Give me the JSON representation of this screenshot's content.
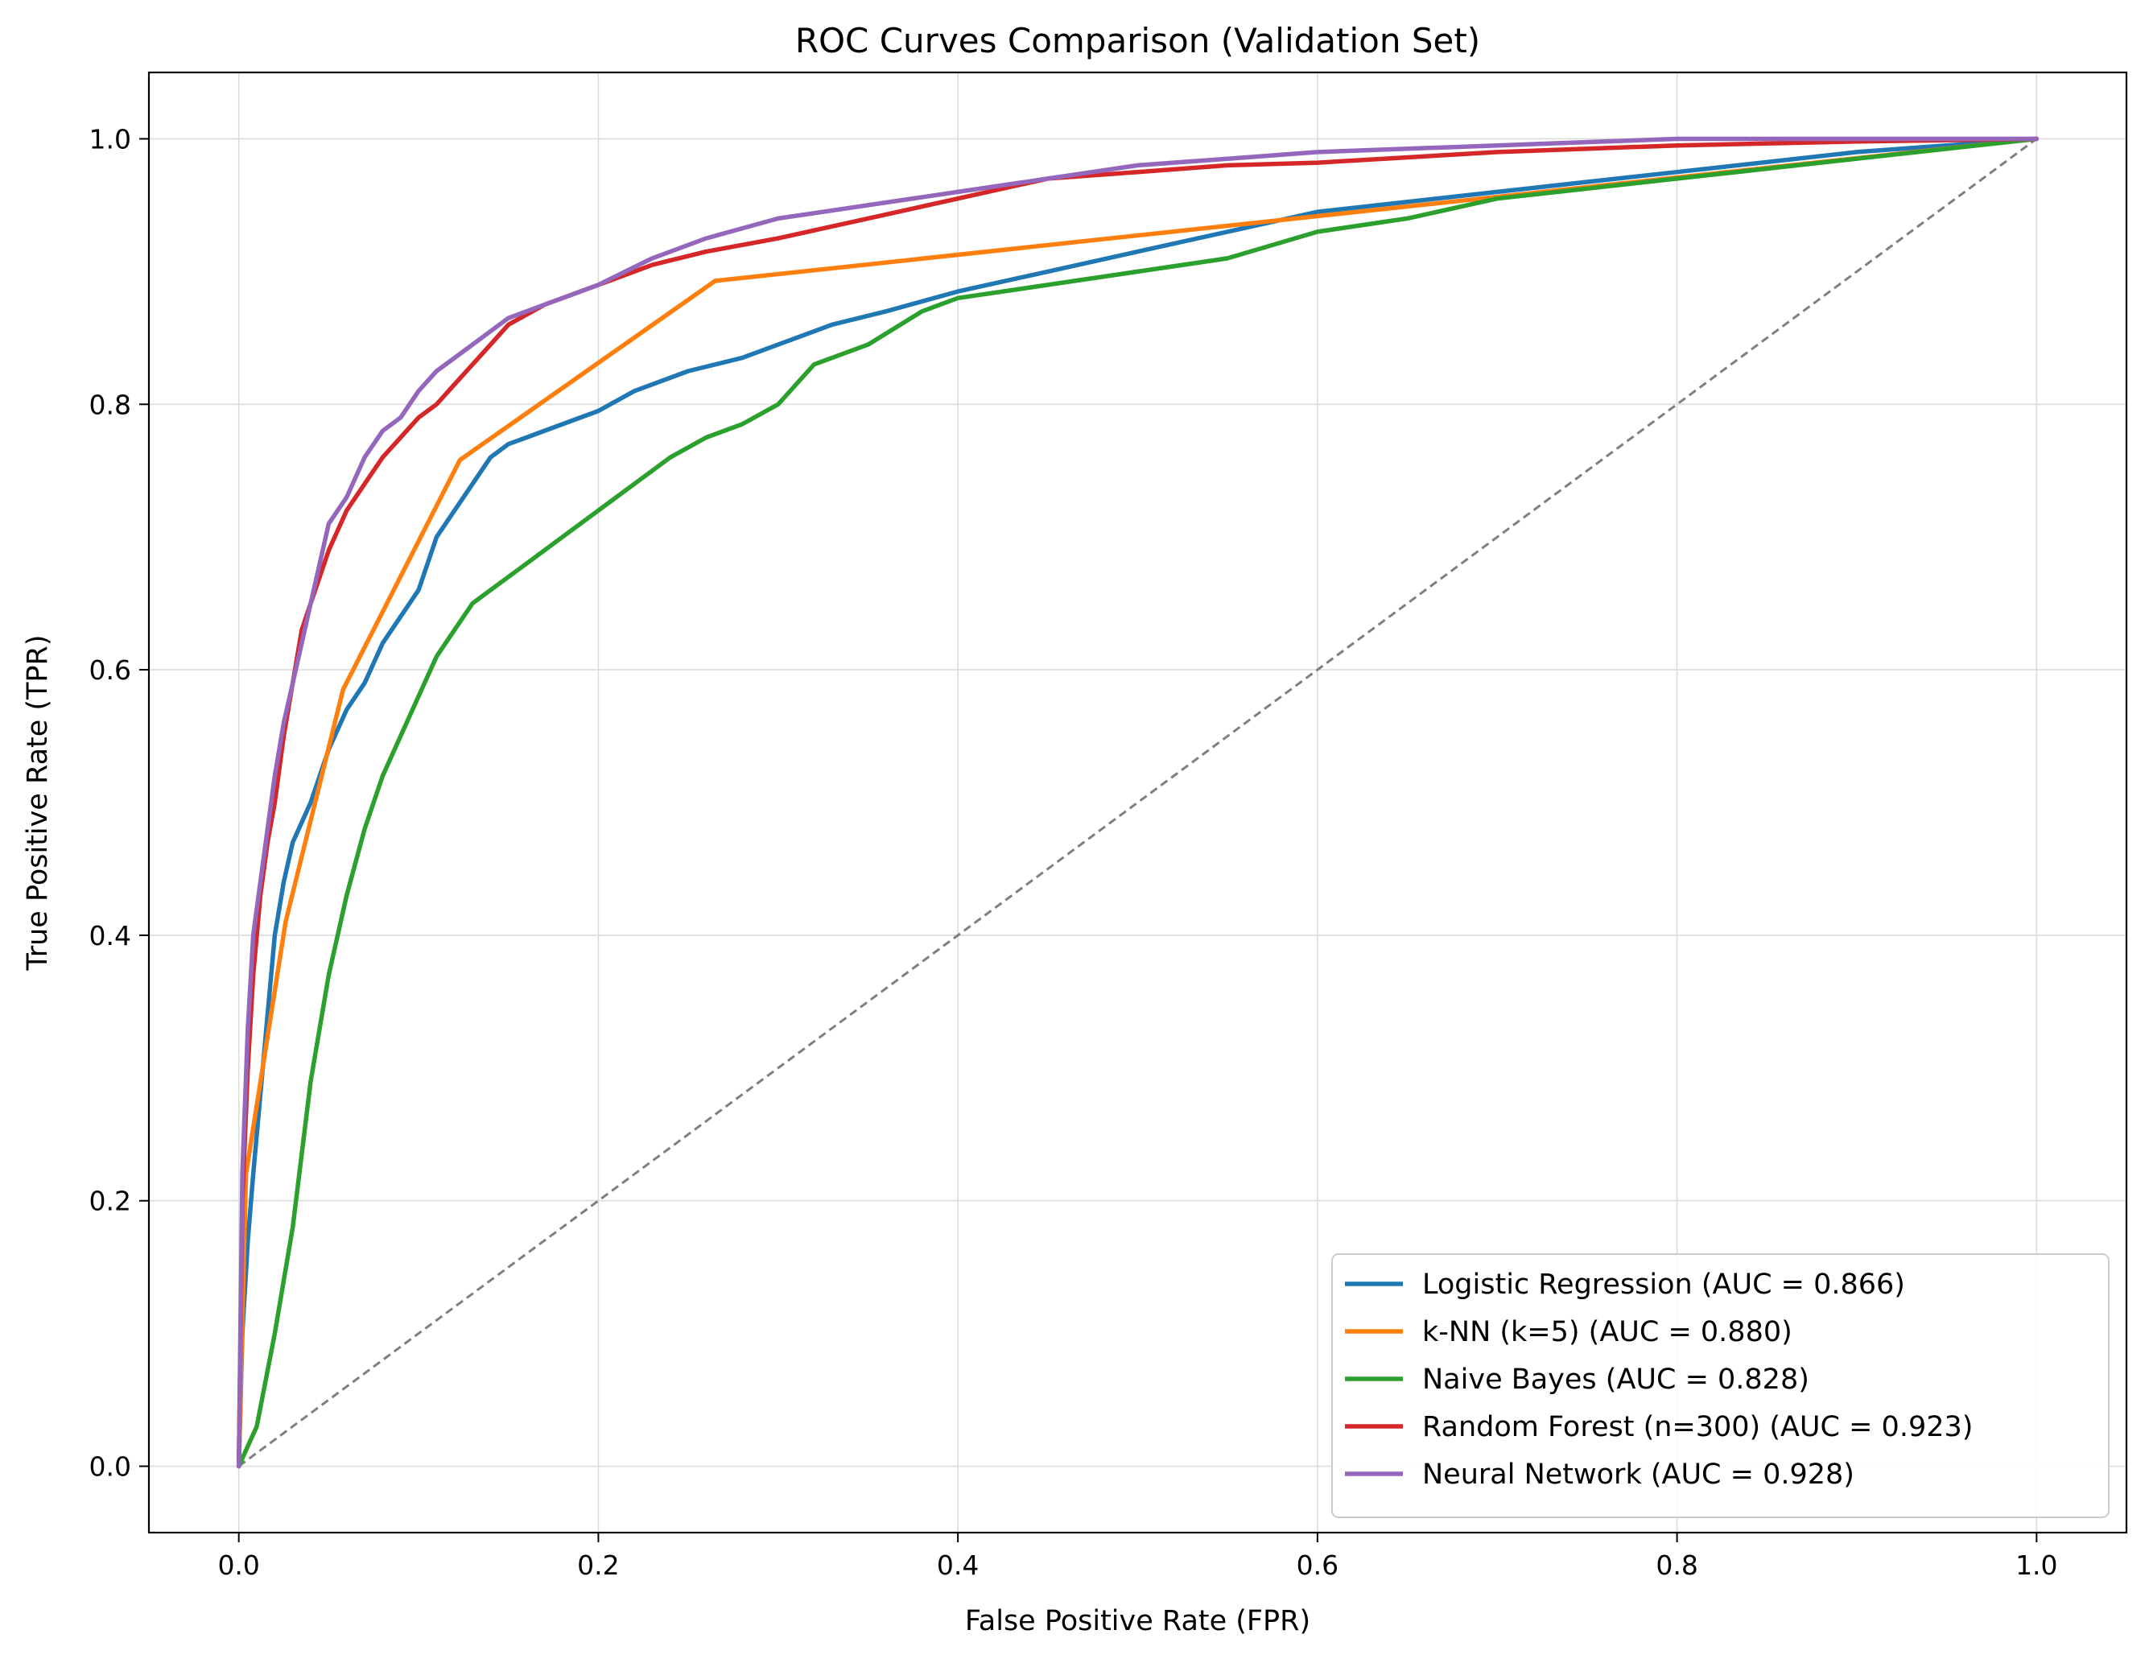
{
  "chart_data": {
    "type": "line",
    "title": "ROC Curves Comparison (Validation Set)",
    "xlabel": "False Positive Rate (FPR)",
    "ylabel": "True Positive Rate (TPR)",
    "xlim": [
      -0.05,
      1.05
    ],
    "ylim": [
      -0.05,
      1.05
    ],
    "xticks": [
      0.0,
      0.2,
      0.4,
      0.6,
      0.8,
      1.0
    ],
    "yticks": [
      0.0,
      0.2,
      0.4,
      0.6,
      0.8,
      1.0
    ],
    "xtick_labels": [
      "0.0",
      "0.2",
      "0.4",
      "0.6",
      "0.8",
      "1.0"
    ],
    "ytick_labels": [
      "0.0",
      "0.2",
      "0.4",
      "0.6",
      "0.8",
      "1.0"
    ],
    "grid": true,
    "legend_position": "lower-right",
    "series": [
      {
        "name": "Logistic Regression (AUC = 0.866)",
        "color": "#1f77b4",
        "x": [
          0,
          0.002,
          0.005,
          0.008,
          0.012,
          0.016,
          0.02,
          0.025,
          0.03,
          0.04,
          0.05,
          0.06,
          0.07,
          0.08,
          0.09,
          0.1,
          0.11,
          0.12,
          0.13,
          0.14,
          0.15,
          0.16,
          0.18,
          0.2,
          0.22,
          0.25,
          0.28,
          0.3,
          0.33,
          0.36,
          0.4,
          0.45,
          0.5,
          0.55,
          0.6,
          0.7,
          0.8,
          0.9,
          1.0
        ],
        "y": [
          0,
          0.1,
          0.17,
          0.22,
          0.28,
          0.34,
          0.4,
          0.44,
          0.47,
          0.5,
          0.54,
          0.57,
          0.59,
          0.62,
          0.64,
          0.66,
          0.7,
          0.72,
          0.74,
          0.76,
          0.77,
          0.775,
          0.785,
          0.795,
          0.81,
          0.825,
          0.835,
          0.845,
          0.86,
          0.87,
          0.885,
          0.9,
          0.915,
          0.93,
          0.945,
          0.96,
          0.975,
          0.99,
          1.0
        ]
      },
      {
        "name": "k-NN (k=5) (AUC = 0.880)",
        "color": "#ff7f0e",
        "x": [
          0,
          0.004,
          0.026,
          0.058,
          0.123,
          0.265,
          1.0
        ],
        "y": [
          0,
          0.22,
          0.41,
          0.585,
          0.758,
          0.893,
          1.0
        ]
      },
      {
        "name": "Naive Bayes (AUC = 0.828)",
        "color": "#2ca02c",
        "x": [
          0,
          0.01,
          0.02,
          0.03,
          0.04,
          0.05,
          0.06,
          0.07,
          0.08,
          0.09,
          0.1,
          0.11,
          0.12,
          0.13,
          0.14,
          0.15,
          0.16,
          0.18,
          0.2,
          0.22,
          0.24,
          0.26,
          0.28,
          0.3,
          0.32,
          0.35,
          0.38,
          0.4,
          0.45,
          0.5,
          0.55,
          0.6,
          0.65,
          0.7,
          0.8,
          0.9,
          1.0
        ],
        "y": [
          0,
          0.03,
          0.1,
          0.18,
          0.29,
          0.37,
          0.43,
          0.48,
          0.52,
          0.55,
          0.58,
          0.61,
          0.63,
          0.65,
          0.66,
          0.67,
          0.68,
          0.7,
          0.72,
          0.74,
          0.76,
          0.775,
          0.785,
          0.8,
          0.83,
          0.845,
          0.87,
          0.88,
          0.89,
          0.9,
          0.91,
          0.93,
          0.94,
          0.955,
          0.97,
          0.985,
          1.0
        ]
      },
      {
        "name": "Random Forest (n=300) (AUC = 0.923)",
        "color": "#d62728",
        "x": [
          0,
          0.002,
          0.005,
          0.008,
          0.012,
          0.016,
          0.02,
          0.025,
          0.03,
          0.035,
          0.04,
          0.045,
          0.05,
          0.06,
          0.07,
          0.08,
          0.09,
          0.1,
          0.11,
          0.12,
          0.13,
          0.14,
          0.15,
          0.17,
          0.2,
          0.23,
          0.26,
          0.3,
          0.35,
          0.4,
          0.45,
          0.5,
          0.55,
          0.6,
          0.7,
          0.8,
          0.9,
          1.0
        ],
        "y": [
          0,
          0.2,
          0.3,
          0.37,
          0.43,
          0.47,
          0.5,
          0.55,
          0.59,
          0.63,
          0.65,
          0.67,
          0.69,
          0.72,
          0.74,
          0.76,
          0.775,
          0.79,
          0.8,
          0.815,
          0.83,
          0.845,
          0.86,
          0.875,
          0.89,
          0.905,
          0.915,
          0.925,
          0.94,
          0.955,
          0.97,
          0.975,
          0.98,
          0.982,
          0.99,
          0.995,
          0.998,
          1.0
        ]
      },
      {
        "name": "Neural Network (AUC = 0.928)",
        "color": "#9467bd",
        "x": [
          0,
          0.002,
          0.005,
          0.008,
          0.012,
          0.016,
          0.02,
          0.025,
          0.03,
          0.035,
          0.04,
          0.045,
          0.05,
          0.06,
          0.07,
          0.08,
          0.09,
          0.1,
          0.11,
          0.12,
          0.13,
          0.14,
          0.15,
          0.17,
          0.2,
          0.23,
          0.26,
          0.3,
          0.35,
          0.4,
          0.45,
          0.5,
          0.55,
          0.6,
          0.7,
          0.8,
          0.9,
          1.0
        ],
        "y": [
          0,
          0.22,
          0.33,
          0.4,
          0.44,
          0.48,
          0.52,
          0.56,
          0.59,
          0.62,
          0.65,
          0.68,
          0.71,
          0.73,
          0.76,
          0.78,
          0.79,
          0.81,
          0.825,
          0.835,
          0.845,
          0.855,
          0.865,
          0.875,
          0.89,
          0.91,
          0.925,
          0.94,
          0.95,
          0.96,
          0.97,
          0.98,
          0.985,
          0.99,
          0.995,
          1.0,
          1.0,
          1.0
        ]
      }
    ],
    "reference_line": {
      "x": [
        0,
        1
      ],
      "y": [
        0,
        1
      ],
      "color": "#7f7f7f",
      "style": "dashed"
    }
  }
}
